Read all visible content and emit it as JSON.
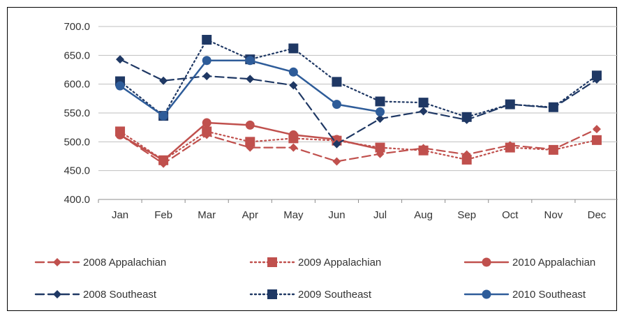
{
  "chart_data": {
    "type": "line",
    "title": "",
    "xlabel": "",
    "ylabel": "",
    "categories": [
      "Jan",
      "Feb",
      "Mar",
      "Apr",
      "May",
      "Jun",
      "Jul",
      "Aug",
      "Sep",
      "Oct",
      "Nov",
      "Dec"
    ],
    "ylim": [
      400,
      700
    ],
    "yticks": [
      "700.0",
      "650.0",
      "600.0",
      "550.0",
      "500.0",
      "450.0",
      "400.0"
    ],
    "grid": "horizontal",
    "legend_position": "bottom",
    "series": [
      {
        "name": "2008  Appalachian",
        "color": "#c0504d",
        "dash": "dashed",
        "marker": "diamond",
        "values": [
          512,
          462,
          512,
          490,
          490,
          466,
          479,
          489,
          478,
          494,
          487,
          522
        ]
      },
      {
        "name": "2009 Appalachian",
        "color": "#c0504d",
        "dash": "dotted",
        "marker": "square",
        "values": [
          518,
          468,
          518,
          500,
          506,
          502,
          490,
          485,
          469,
          490,
          486,
          503
        ]
      },
      {
        "name": "2010 Appalachian",
        "color": "#c0504d",
        "dash": "solid",
        "marker": "circle",
        "values": [
          512,
          468,
          533,
          529,
          512,
          504,
          487,
          null,
          null,
          null,
          null,
          null
        ]
      },
      {
        "name": "2008 Southeast",
        "color": "#1f3864",
        "dash": "dashed",
        "marker": "diamond",
        "values": [
          643,
          606,
          614,
          609,
          598,
          496,
          540,
          553,
          538,
          565,
          559,
          608
        ]
      },
      {
        "name": "2009 Southeast",
        "color": "#1f3864",
        "dash": "dotted",
        "marker": "square",
        "values": [
          605,
          545,
          677,
          643,
          662,
          604,
          570,
          568,
          543,
          565,
          560,
          615
        ]
      },
      {
        "name": "2010 Southeast",
        "color": "#2e5c99",
        "dash": "solid",
        "marker": "circle",
        "values": [
          597,
          545,
          641,
          641,
          621,
          565,
          552,
          null,
          null,
          null,
          null,
          null
        ]
      }
    ]
  }
}
